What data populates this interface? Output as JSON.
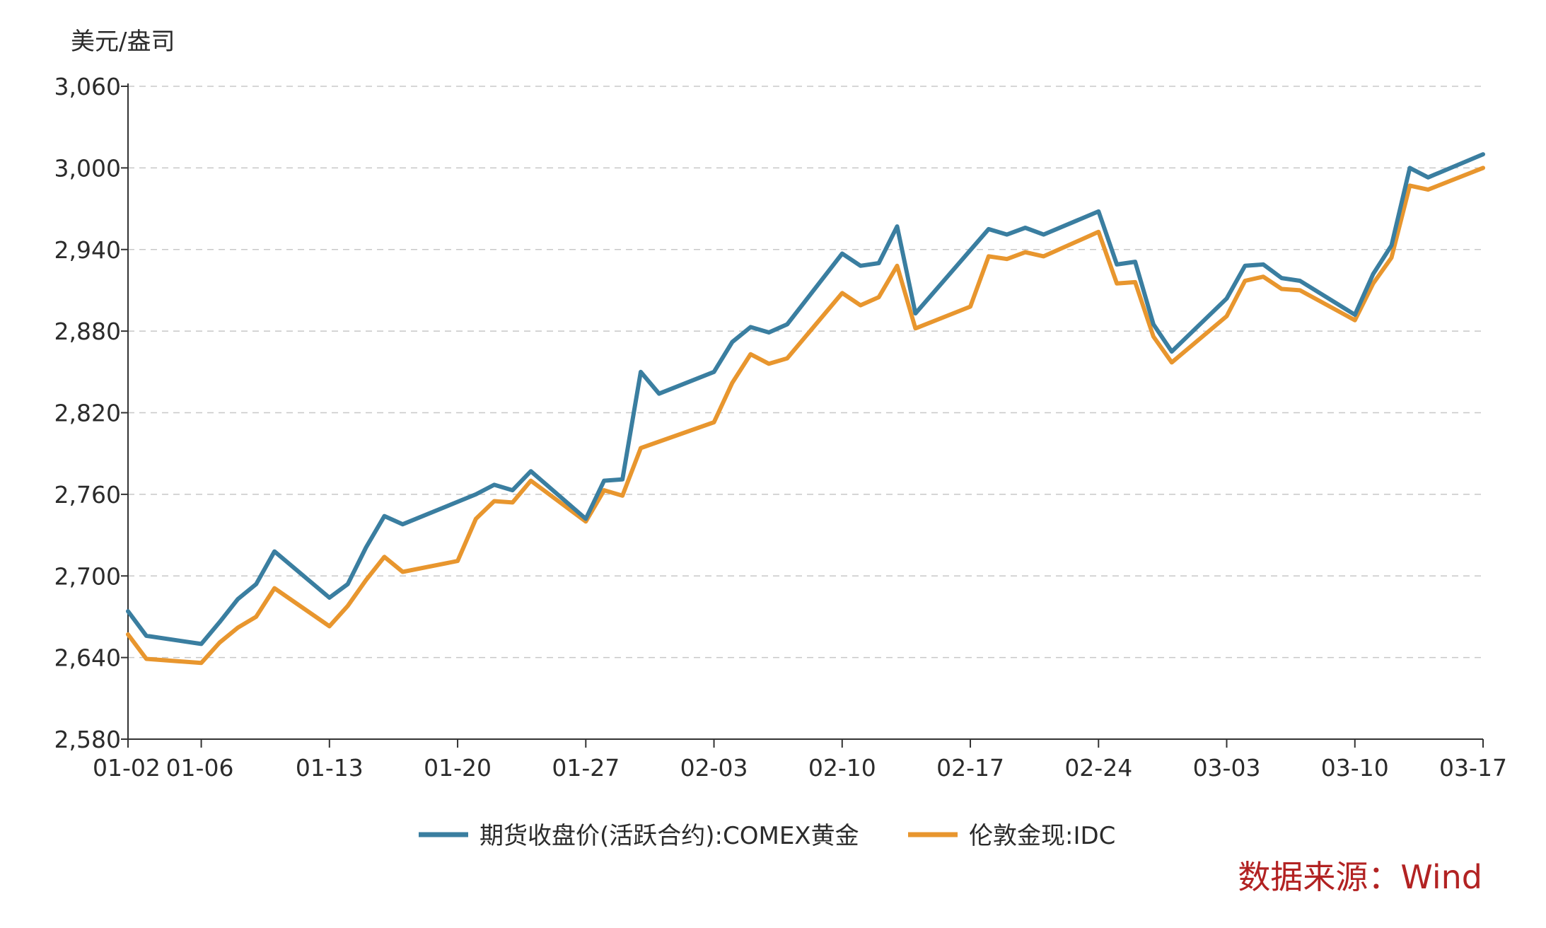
{
  "chart_data": {
    "type": "line",
    "unit_label": "美元/盎司",
    "ylim": [
      2580,
      3060
    ],
    "yticks": [
      2580,
      2640,
      2700,
      2760,
      2820,
      2880,
      2940,
      3000,
      3060
    ],
    "ytick_labels": [
      "2,580",
      "2,640",
      "2,700",
      "2,760",
      "2,820",
      "2,880",
      "2,940",
      "3,000",
      "3,060"
    ],
    "xlim": [
      "2025-01-02",
      "2025-03-17"
    ],
    "xticks": [
      "2025-01-02",
      "2025-01-06",
      "2025-01-13",
      "2025-01-20",
      "2025-01-27",
      "2025-02-03",
      "2025-02-10",
      "2025-02-17",
      "2025-02-24",
      "2025-03-03",
      "2025-03-10",
      "2025-03-17"
    ],
    "xtick_labels": [
      "01-02",
      "01-06",
      "01-13",
      "01-20",
      "01-27",
      "02-03",
      "02-10",
      "02-17",
      "02-24",
      "03-03",
      "03-10",
      "03-17"
    ],
    "grid": "horizontal dashed",
    "legend_position": "bottom-center",
    "series": [
      {
        "name": "期货收盘价(活跃合约):COMEX黄金",
        "color": "#3a7ea0",
        "points": [
          [
            "2025-01-02",
            2674
          ],
          [
            "2025-01-03",
            2656
          ],
          [
            "2025-01-06",
            2650
          ],
          [
            "2025-01-07",
            2666
          ],
          [
            "2025-01-08",
            2683
          ],
          [
            "2025-01-09",
            2694
          ],
          [
            "2025-01-10",
            2718
          ],
          [
            "2025-01-13",
            2684
          ],
          [
            "2025-01-14",
            2694
          ],
          [
            "2025-01-15",
            2721
          ],
          [
            "2025-01-16",
            2744
          ],
          [
            "2025-01-17",
            2738
          ],
          [
            "2025-01-21",
            2760
          ],
          [
            "2025-01-22",
            2767
          ],
          [
            "2025-01-23",
            2763
          ],
          [
            "2025-01-24",
            2777
          ],
          [
            "2025-01-27",
            2742
          ],
          [
            "2025-01-28",
            2770
          ],
          [
            "2025-01-29",
            2771
          ],
          [
            "2025-01-30",
            2850
          ],
          [
            "2025-01-31",
            2834
          ],
          [
            "2025-02-03",
            2850
          ],
          [
            "2025-02-04",
            2872
          ],
          [
            "2025-02-05",
            2883
          ],
          [
            "2025-02-06",
            2879
          ],
          [
            "2025-02-07",
            2885
          ],
          [
            "2025-02-10",
            2937
          ],
          [
            "2025-02-11",
            2928
          ],
          [
            "2025-02-12",
            2930
          ],
          [
            "2025-02-13",
            2957
          ],
          [
            "2025-02-14",
            2893
          ],
          [
            "2025-02-18",
            2955
          ],
          [
            "2025-02-19",
            2951
          ],
          [
            "2025-02-20",
            2956
          ],
          [
            "2025-02-21",
            2951
          ],
          [
            "2025-02-24",
            2968
          ],
          [
            "2025-02-25",
            2929
          ],
          [
            "2025-02-26",
            2931
          ],
          [
            "2025-02-27",
            2885
          ],
          [
            "2025-02-28",
            2865
          ],
          [
            "2025-03-03",
            2904
          ],
          [
            "2025-03-04",
            2928
          ],
          [
            "2025-03-05",
            2929
          ],
          [
            "2025-03-06",
            2919
          ],
          [
            "2025-03-07",
            2917
          ],
          [
            "2025-03-10",
            2892
          ],
          [
            "2025-03-11",
            2922
          ],
          [
            "2025-03-12",
            2943
          ],
          [
            "2025-03-13",
            3000
          ],
          [
            "2025-03-14",
            2993
          ],
          [
            "2025-03-17",
            3010
          ]
        ]
      },
      {
        "name": "伦敦金现:IDC",
        "color": "#e8962e",
        "points": [
          [
            "2025-01-02",
            2657
          ],
          [
            "2025-01-03",
            2639
          ],
          [
            "2025-01-06",
            2636
          ],
          [
            "2025-01-07",
            2651
          ],
          [
            "2025-01-08",
            2662
          ],
          [
            "2025-01-09",
            2670
          ],
          [
            "2025-01-10",
            2691
          ],
          [
            "2025-01-13",
            2663
          ],
          [
            "2025-01-14",
            2678
          ],
          [
            "2025-01-15",
            2697
          ],
          [
            "2025-01-16",
            2714
          ],
          [
            "2025-01-17",
            2703
          ],
          [
            "2025-01-20",
            2711
          ],
          [
            "2025-01-21",
            2742
          ],
          [
            "2025-01-22",
            2755
          ],
          [
            "2025-01-23",
            2754
          ],
          [
            "2025-01-24",
            2770
          ],
          [
            "2025-01-27",
            2740
          ],
          [
            "2025-01-28",
            2763
          ],
          [
            "2025-01-29",
            2759
          ],
          [
            "2025-01-30",
            2794
          ],
          [
            "2025-02-03",
            2813
          ],
          [
            "2025-02-04",
            2842
          ],
          [
            "2025-02-05",
            2863
          ],
          [
            "2025-02-06",
            2856
          ],
          [
            "2025-02-07",
            2860
          ],
          [
            "2025-02-10",
            2908
          ],
          [
            "2025-02-11",
            2899
          ],
          [
            "2025-02-12",
            2905
          ],
          [
            "2025-02-13",
            2928
          ],
          [
            "2025-02-14",
            2882
          ],
          [
            "2025-02-17",
            2898
          ],
          [
            "2025-02-18",
            2935
          ],
          [
            "2025-02-19",
            2933
          ],
          [
            "2025-02-20",
            2938
          ],
          [
            "2025-02-21",
            2935
          ],
          [
            "2025-02-24",
            2953
          ],
          [
            "2025-02-25",
            2915
          ],
          [
            "2025-02-26",
            2916
          ],
          [
            "2025-02-27",
            2876
          ],
          [
            "2025-02-28",
            2857
          ],
          [
            "2025-03-03",
            2891
          ],
          [
            "2025-03-04",
            2917
          ],
          [
            "2025-03-05",
            2920
          ],
          [
            "2025-03-06",
            2911
          ],
          [
            "2025-03-07",
            2910
          ],
          [
            "2025-03-10",
            2888
          ],
          [
            "2025-03-11",
            2915
          ],
          [
            "2025-03-12",
            2934
          ],
          [
            "2025-03-13",
            2987
          ],
          [
            "2025-03-14",
            2984
          ],
          [
            "2025-03-17",
            3000
          ]
        ]
      }
    ],
    "source_note": "数据来源：Wind"
  }
}
